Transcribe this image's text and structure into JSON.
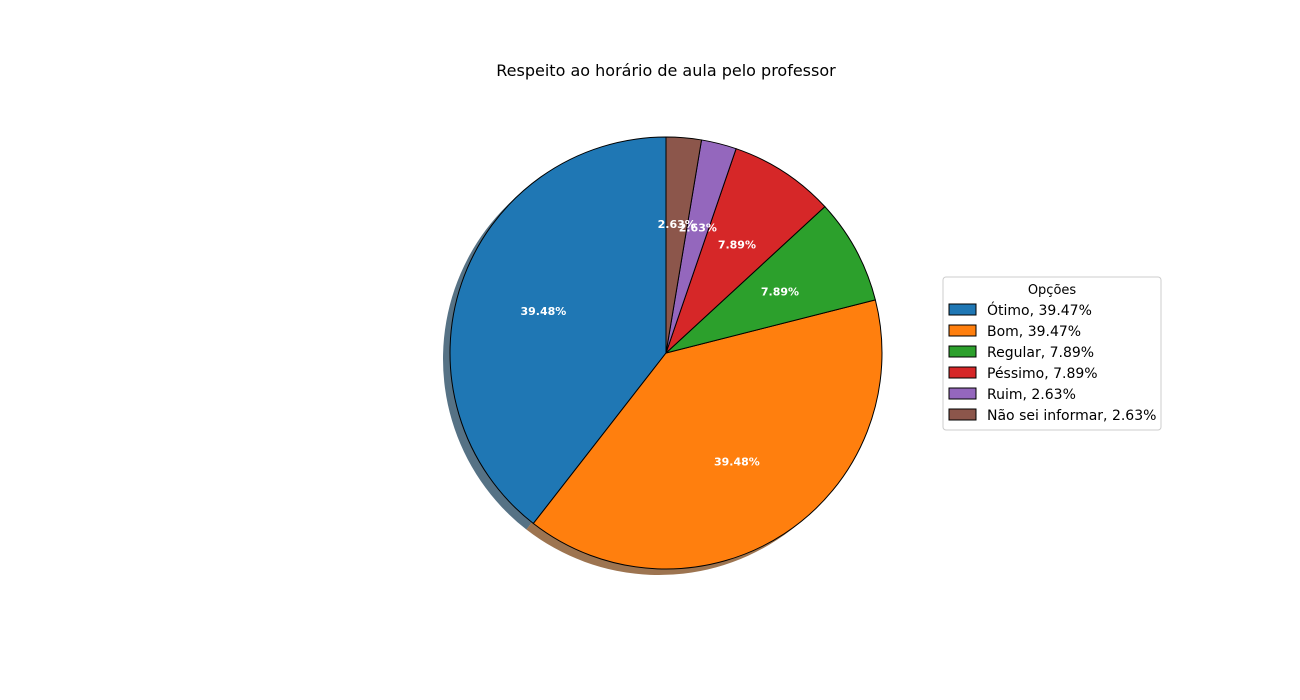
{
  "chart_data": {
    "type": "pie",
    "title": "Respeito ao horário de aula pelo professor",
    "legend_title": "Opções",
    "legend_placement": "right",
    "start_angle_deg": 90,
    "direction": "counterclockwise",
    "shadow": true,
    "slices": [
      {
        "label": "Ótimo",
        "value": 39.47,
        "autopct": "39.48%",
        "legend": "Ótimo, 39.47%",
        "color": "#1f77b4"
      },
      {
        "label": "Bom",
        "value": 39.47,
        "autopct": "39.48%",
        "legend": "Bom, 39.47%",
        "color": "#ff7f0e"
      },
      {
        "label": "Regular",
        "value": 7.89,
        "autopct": "7.89%",
        "legend": "Regular, 7.89%",
        "color": "#2ca02c"
      },
      {
        "label": "Péssimo",
        "value": 7.89,
        "autopct": "7.89%",
        "legend": "Péssimo, 7.89%",
        "color": "#d62728"
      },
      {
        "label": "Ruim",
        "value": 2.63,
        "autopct": "2.63%",
        "legend": "Ruim, 2.63%",
        "color": "#9467bd"
      },
      {
        "label": "Não sei informar",
        "value": 2.63,
        "autopct": "2.63%",
        "legend": "Não sei informar, 2.63%",
        "color": "#8c564b"
      }
    ]
  }
}
